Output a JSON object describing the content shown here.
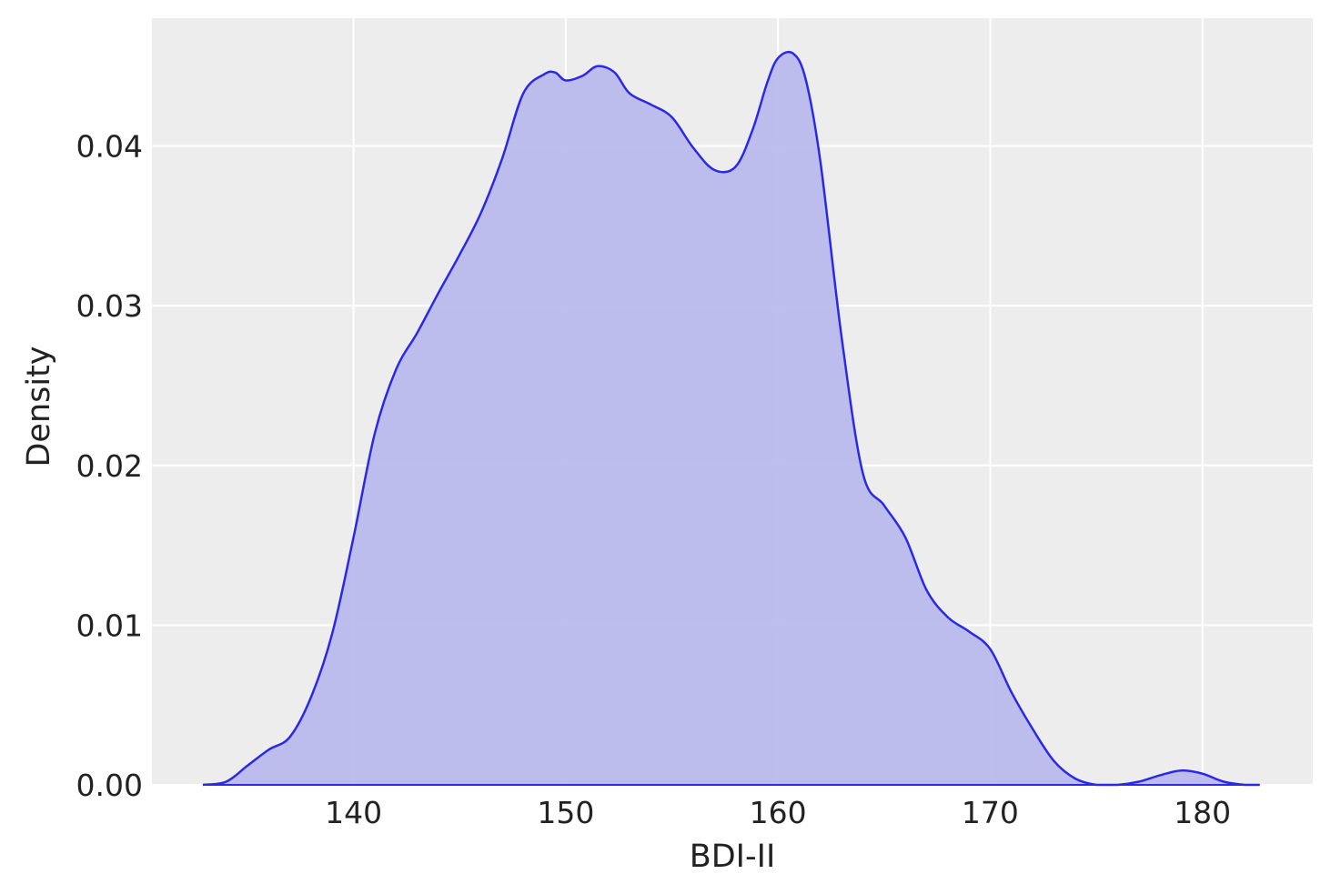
{
  "chart_data": {
    "type": "area",
    "xlabel": "BDI-II",
    "ylabel": "Density",
    "xlim": [
      130.5,
      185.2
    ],
    "ylim": [
      0,
      0.048
    ],
    "x_ticks": [
      140,
      150,
      160,
      170,
      180
    ],
    "x_tick_labels": [
      "140",
      "150",
      "160",
      "170",
      "180"
    ],
    "y_ticks": [
      0,
      0.01,
      0.02,
      0.03,
      0.04
    ],
    "y_tick_labels": [
      "0.00",
      "0.01",
      "0.02",
      "0.03",
      "0.04"
    ],
    "grid": true,
    "legend": "none",
    "colors": {
      "plot_background": "#ededed",
      "grid": "#ffffff",
      "line": "#2a2ae6",
      "fill": "#babaed",
      "text": "#222222"
    },
    "series": [
      {
        "x": [
          132.9,
          134.0,
          135.0,
          136.0,
          137.0,
          138.0,
          139.0,
          140.0,
          141.0,
          142.0,
          143.0,
          144.0,
          145.0,
          146.0,
          147.0,
          148.0,
          149.0,
          149.5,
          150.0,
          150.8,
          151.5,
          152.3,
          153.0,
          154.0,
          155.0,
          156.0,
          157.0,
          158.0,
          158.8,
          159.5,
          160.0,
          160.7,
          161.3,
          162.0,
          163.0,
          164.0,
          165.0,
          166.0,
          167.0,
          168.0,
          169.0,
          170.0,
          171.0,
          172.0,
          173.0,
          174.0,
          175.0,
          176.0,
          177.0,
          178.0,
          179.0,
          180.0,
          181.0,
          182.0,
          182.7
        ],
        "y": [
          0.0,
          0.0002,
          0.0012,
          0.0022,
          0.003,
          0.0055,
          0.0095,
          0.0155,
          0.022,
          0.026,
          0.0283,
          0.0308,
          0.0332,
          0.0358,
          0.0392,
          0.0433,
          0.0445,
          0.0446,
          0.0441,
          0.0444,
          0.045,
          0.0446,
          0.0433,
          0.0426,
          0.0418,
          0.0399,
          0.0385,
          0.0387,
          0.041,
          0.044,
          0.0455,
          0.0458,
          0.0442,
          0.039,
          0.028,
          0.0195,
          0.0175,
          0.0155,
          0.0122,
          0.0105,
          0.0096,
          0.0085,
          0.0058,
          0.0035,
          0.0015,
          0.0004,
          0.0,
          0.0,
          0.0002,
          0.0006,
          0.0009,
          0.0007,
          0.0002,
          0.0,
          0.0
        ]
      }
    ]
  }
}
